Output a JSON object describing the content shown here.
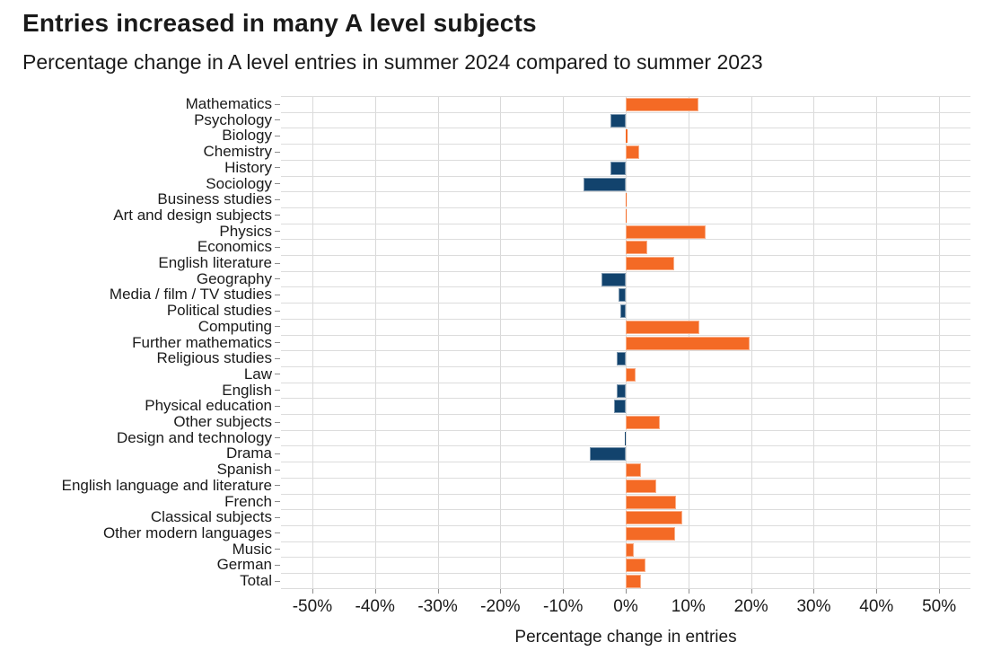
{
  "header": {
    "title": "Entries increased in many A level subjects",
    "subtitle": "Percentage change in A level entries in summer 2024 compared to summer 2023"
  },
  "chart_data": {
    "type": "bar",
    "orientation": "horizontal",
    "title": "Entries increased in many A level subjects",
    "subtitle": "Percentage change in A level entries in summer 2024 compared to summer 2023",
    "xlabel": "Percentage change in entries",
    "ylabel": "",
    "xlim": [
      -55,
      55
    ],
    "xticks": [
      -50,
      -40,
      -30,
      -20,
      -10,
      0,
      10,
      20,
      30,
      40,
      50
    ],
    "xtick_suffix": "%",
    "grid": true,
    "legend": "none",
    "categories": [
      "Mathematics",
      "Psychology",
      "Biology",
      "Chemistry",
      "History",
      "Sociology",
      "Business studies",
      "Art and design subjects",
      "Physics",
      "Economics",
      "English literature",
      "Geography",
      "Media / film / TV studies",
      "Political studies",
      "Computing",
      "Further mathematics",
      "Religious studies",
      "Law",
      "English",
      "Physical education",
      "Other subjects",
      "Design and technology",
      "Drama",
      "Spanish",
      "English language and literature",
      "French",
      "Classical subjects",
      "Other modern languages",
      "Music",
      "German",
      "Total"
    ],
    "values": [
      11.6,
      -2.4,
      0.3,
      2.1,
      -2.4,
      -6.8,
      0.1,
      0.1,
      12.7,
      3.5,
      7.8,
      -3.8,
      -1.2,
      -0.9,
      11.8,
      19.8,
      -1.4,
      1.6,
      -1.4,
      -1.8,
      5.5,
      -0.2,
      -5.8,
      2.4,
      4.9,
      8.0,
      9.0,
      7.9,
      1.3,
      3.1,
      2.4
    ],
    "colors": {
      "increase": "#F46A25",
      "decrease": "#12436D",
      "gridline": "#D9D9D9",
      "tick": "#8C8C8C",
      "text": "#1A1A1A"
    }
  }
}
